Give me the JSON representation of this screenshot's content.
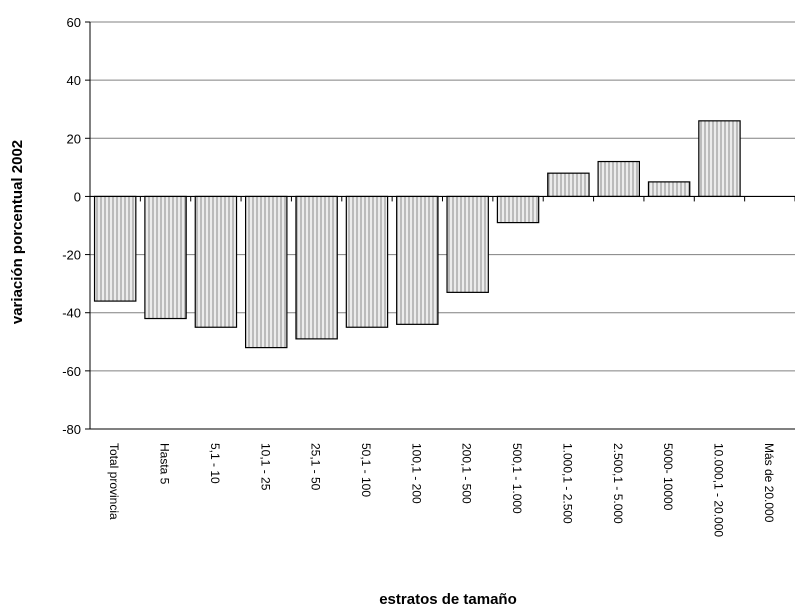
{
  "chart_data": {
    "type": "bar",
    "title": "",
    "xlabel": "estratos de tamaño",
    "ylabel": "variación porcentual 2002",
    "ylim": [
      -80,
      60
    ],
    "yticks": [
      60,
      40,
      20,
      0,
      -20,
      -40,
      -60,
      -80
    ],
    "grid": true,
    "categories": [
      "Total provincia",
      "Hasta 5",
      "5,1 - 10",
      "10,1 - 25",
      "25,1 - 50",
      "50,1 - 100",
      "100,1 - 200",
      "200,1 - 500",
      "500,1 - 1.000",
      "1.000,1 - 2.500",
      "2.500,1 - 5.000",
      "5000- 10000",
      "10.000,1 - 20.000",
      "Más de 20.000"
    ],
    "values": [
      -36,
      -42,
      -45,
      -52,
      -49,
      -45,
      -44,
      -33,
      -9,
      8,
      12,
      5,
      26,
      0
    ],
    "colors": {
      "bar_fill": "#e6e6e6",
      "bar_hatch": "#888888",
      "bar_stroke": "#000000",
      "grid": "#808080",
      "axis": "#000000"
    }
  }
}
